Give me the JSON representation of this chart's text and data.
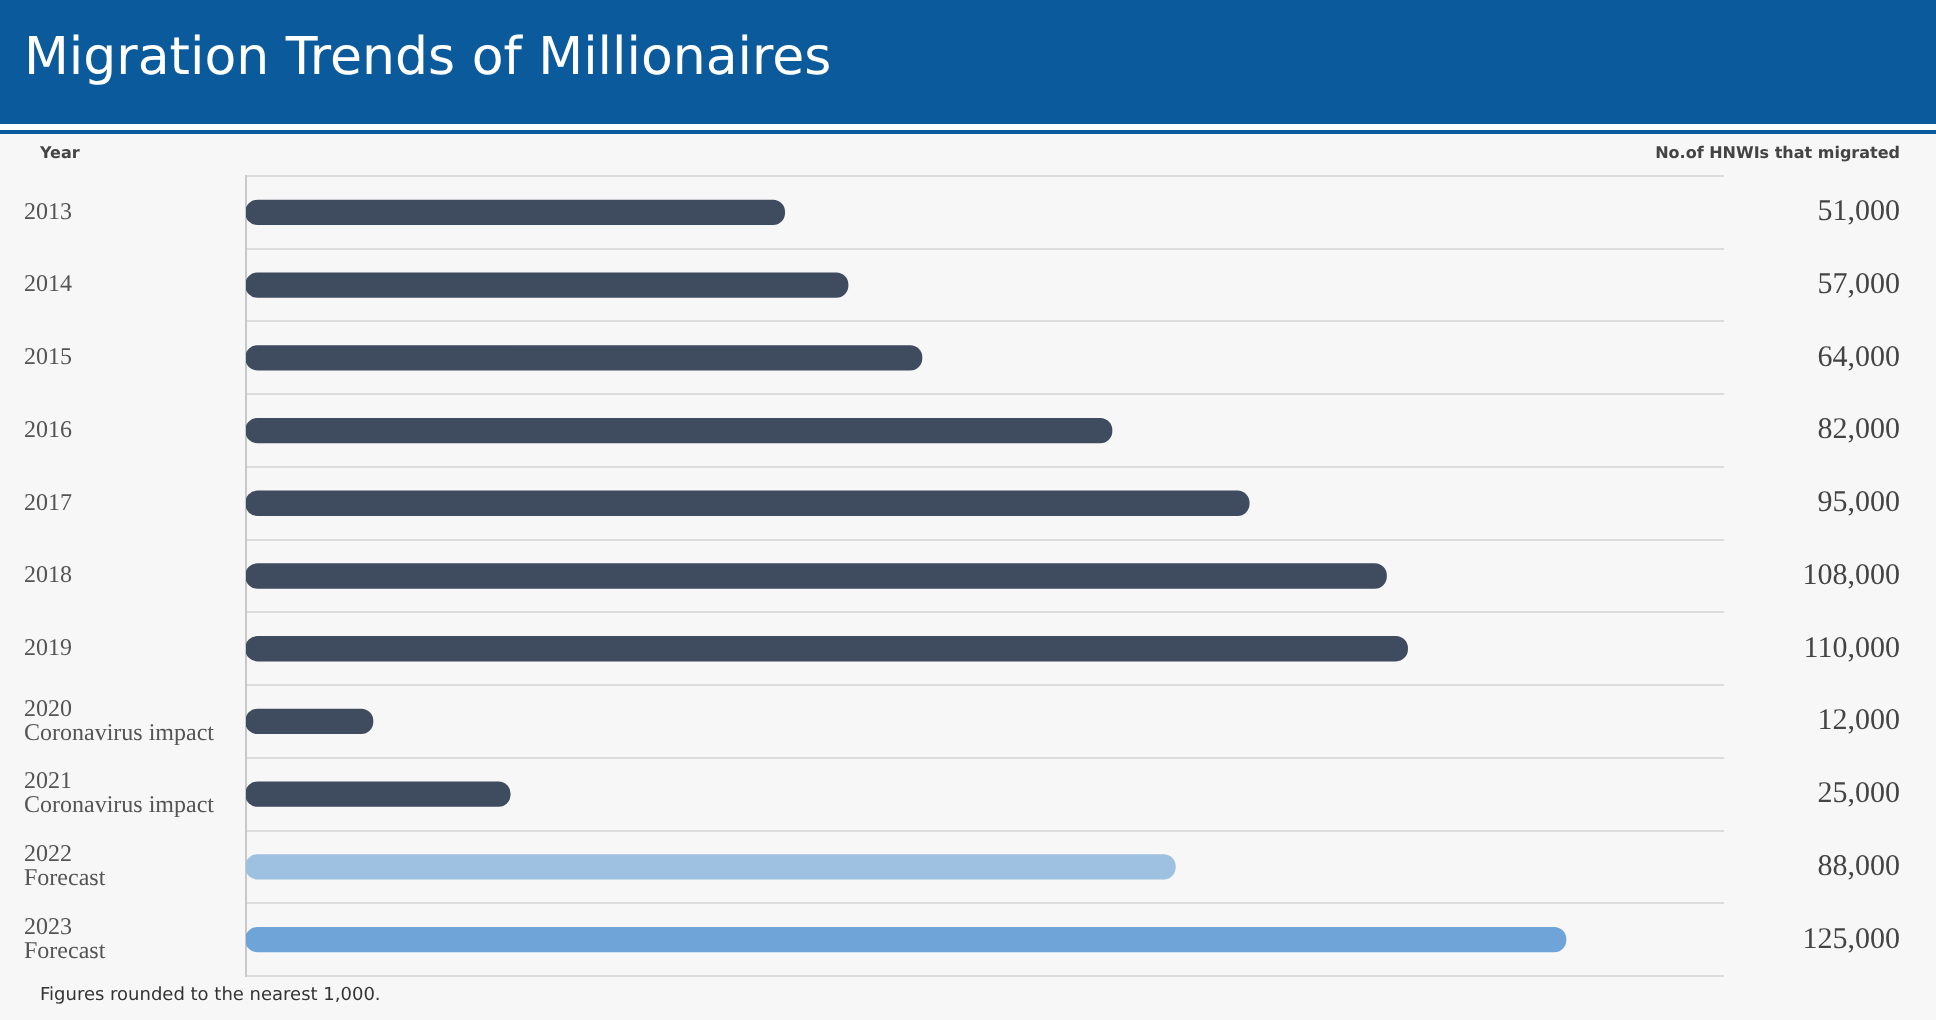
{
  "chart_data": {
    "type": "bar",
    "orientation": "horizontal",
    "title": "Migration Trends of Millionaires",
    "ylabel": "Year",
    "categories": [
      "2013",
      "2014",
      "2015",
      "2016",
      "2017",
      "2018",
      "2019",
      "2020\nCoronavirus impact",
      "2021\nCoronavirus impact",
      "2022\nForecast",
      "2023\nForecast"
    ],
    "values": [
      51000,
      57000,
      64000,
      82000,
      95000,
      108000,
      110000,
      12000,
      25000,
      88000,
      125000
    ],
    "colors": [
      "#3f4b5f",
      "#3f4b5f",
      "#3f4b5f",
      "#3f4b5f",
      "#3f4b5f",
      "#3f4b5f",
      "#3f4b5f",
      "#3f4b5f",
      "#3f4b5f",
      "#9ec1e2",
      "#6ea4d7"
    ],
    "value_labels": [
      "51,000",
      "57,000",
      "64,000",
      "82,000",
      "95,000",
      "108,000",
      "110,000",
      "12,000",
      "25,000",
      "88,000",
      "125,000"
    ],
    "grid": "y",
    "legend": false,
    "annotations": [
      "No.of HNWIs that migrated",
      "Figures rounded to the nearest 1,000."
    ]
  }
}
